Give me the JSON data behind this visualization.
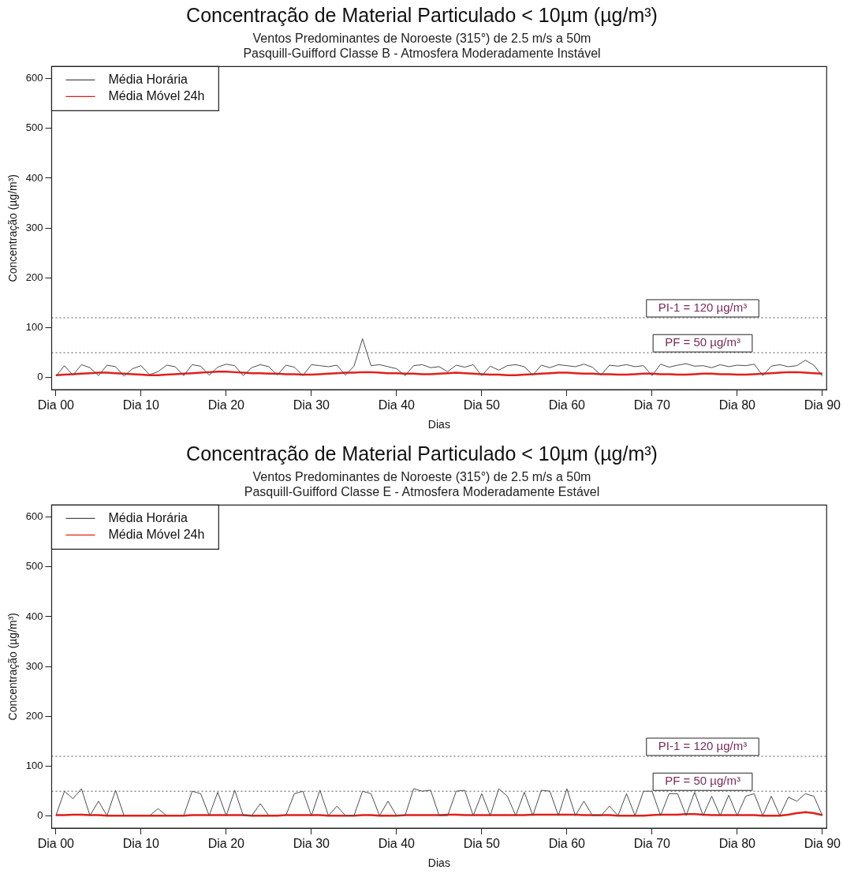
{
  "chart_data": [
    {
      "type": "line",
      "title": "Concentração de Material Particulado < 10µm (µg/m³)",
      "subtitle": "Ventos Predominantes de Noroeste (315°) de 2.5 m/s a 50m\nPasquill-Guifford Classe B - Atmosfera Moderadamente Instável",
      "xlabel": "Dias",
      "ylabel": "Concentração (µg/m³)",
      "categories": [
        "Dia 00",
        null,
        null,
        null,
        null,
        null,
        null,
        null,
        null,
        null,
        "Dia 10",
        null,
        null,
        null,
        null,
        null,
        null,
        null,
        null,
        null,
        "Dia 20",
        null,
        null,
        null,
        null,
        null,
        null,
        null,
        null,
        null,
        "Dia 30",
        null,
        null,
        null,
        null,
        null,
        null,
        null,
        null,
        null,
        "Dia 40",
        null,
        null,
        null,
        null,
        null,
        null,
        null,
        null,
        null,
        "Dia 50",
        null,
        null,
        null,
        null,
        null,
        null,
        null,
        null,
        null,
        "Dia 60",
        null,
        null,
        null,
        null,
        null,
        null,
        null,
        null,
        null,
        "Dia 70",
        null,
        null,
        null,
        null,
        null,
        null,
        null,
        null,
        null,
        "Dia 80",
        null,
        null,
        null,
        null,
        null,
        null,
        null,
        null,
        null,
        "Dia 90"
      ],
      "series": [
        {
          "name": "Média Horária",
          "color": "#4d4d4d",
          "values": [
            3,
            24,
            5,
            26,
            20,
            4,
            25,
            22,
            3,
            18,
            24,
            6,
            12,
            25,
            22,
            4,
            26,
            23,
            5,
            21,
            27,
            24,
            4,
            20,
            26,
            22,
            5,
            25,
            21,
            4,
            26,
            24,
            22,
            25,
            5,
            23,
            78,
            24,
            26,
            22,
            18,
            4,
            24,
            26,
            20,
            22,
            12,
            25,
            21,
            26,
            4,
            23,
            15,
            24,
            26,
            22,
            5,
            25,
            20,
            26,
            24,
            22,
            27,
            21,
            5,
            25,
            23,
            26,
            22,
            24,
            4,
            27,
            21,
            25,
            28,
            23,
            24,
            20,
            26,
            22,
            25,
            24,
            27,
            4,
            23,
            26,
            22,
            24,
            35,
            25,
            3
          ]
        },
        {
          "name": "Média Móvel 24h",
          "color": "#e0201b",
          "values": [
            5,
            6,
            7,
            8,
            9,
            10,
            10,
            9,
            8,
            7,
            6,
            5,
            5,
            6,
            7,
            8,
            9,
            10,
            11,
            12,
            12,
            11,
            10,
            9,
            9,
            8,
            8,
            7,
            7,
            6,
            6,
            7,
            8,
            9,
            10,
            10,
            11,
            11,
            10,
            9,
            9,
            8,
            8,
            7,
            7,
            8,
            9,
            10,
            9,
            8,
            7,
            6,
            6,
            5,
            5,
            6,
            7,
            8,
            9,
            10,
            10,
            9,
            8,
            8,
            7,
            7,
            6,
            6,
            7,
            8,
            8,
            7,
            7,
            6,
            6,
            7,
            8,
            8,
            7,
            7,
            6,
            6,
            7,
            8,
            9,
            10,
            11,
            11,
            10,
            9,
            8
          ]
        }
      ],
      "ylim": [
        -24,
        624
      ],
      "yticks": [
        0,
        100,
        200,
        300,
        400,
        500,
        600
      ],
      "ref_lines": [
        {
          "axis": "y",
          "value": 120,
          "label": "PI-1 = 120 µg/m³",
          "color": "#555555",
          "line_style": "dotted"
        },
        {
          "axis": "y",
          "value": 50,
          "label": "PF = 50 µg/m³",
          "color": "#555555",
          "line_style": "dotted"
        }
      ],
      "legend": "top left",
      "marker": "none",
      "line_style": "solid",
      "grid": false
    },
    {
      "type": "line",
      "title": "Concentração de Material Particulado < 10µm (µg/m³)",
      "subtitle": "Ventos Predominantes de Noroeste (315°) de 2.5 m/s a 50m\nPasquill-Guifford Classe E - Atmosfera Moderadamente Estável",
      "xlabel": "Dias",
      "ylabel": "Concentração (µg/m³)",
      "categories": [
        "Dia 00",
        null,
        null,
        null,
        null,
        null,
        null,
        null,
        null,
        null,
        "Dia 10",
        null,
        null,
        null,
        null,
        null,
        null,
        null,
        null,
        null,
        "Dia 20",
        null,
        null,
        null,
        null,
        null,
        null,
        null,
        null,
        null,
        "Dia 30",
        null,
        null,
        null,
        null,
        null,
        null,
        null,
        null,
        null,
        "Dia 40",
        null,
        null,
        null,
        null,
        null,
        null,
        null,
        null,
        null,
        "Dia 50",
        null,
        null,
        null,
        null,
        null,
        null,
        null,
        null,
        null,
        "Dia 60",
        null,
        null,
        null,
        null,
        null,
        null,
        null,
        null,
        null,
        "Dia 70",
        null,
        null,
        null,
        null,
        null,
        null,
        null,
        null,
        null,
        "Dia 80",
        null,
        null,
        null,
        null,
        null,
        null,
        null,
        null,
        null,
        "Dia 90"
      ],
      "series": [
        {
          "name": "Média Horária",
          "color": "#4d4d4d",
          "values": [
            1,
            50,
            35,
            55,
            1,
            30,
            1,
            52,
            1,
            null,
            null,
            1,
            15,
            1,
            null,
            1,
            50,
            45,
            1,
            48,
            1,
            52,
            1,
            1,
            25,
            1,
            null,
            1,
            45,
            50,
            1,
            52,
            1,
            20,
            1,
            1,
            50,
            45,
            1,
            30,
            1,
            1,
            55,
            50,
            52,
            1,
            1,
            50,
            52,
            1,
            45,
            1,
            55,
            40,
            1,
            48,
            1,
            52,
            50,
            1,
            55,
            1,
            30,
            1,
            1,
            20,
            1,
            45,
            1,
            50,
            50,
            1,
            45,
            45,
            1,
            48,
            1,
            40,
            1,
            42,
            1,
            40,
            45,
            1,
            40,
            1,
            38,
            30,
            45,
            40,
            1
          ]
        },
        {
          "name": "Média Móvel 24h",
          "color": "#e0201b",
          "values": [
            2,
            2,
            3,
            3,
            2,
            2,
            1,
            1,
            1,
            1,
            1,
            1,
            1,
            1,
            1,
            1,
            2,
            2,
            2,
            2,
            2,
            2,
            2,
            1,
            1,
            1,
            1,
            2,
            2,
            2,
            2,
            2,
            1,
            1,
            1,
            1,
            2,
            2,
            1,
            1,
            1,
            2,
            2,
            2,
            2,
            2,
            3,
            3,
            2,
            2,
            2,
            2,
            2,
            2,
            2,
            2,
            3,
            3,
            3,
            3,
            3,
            3,
            2,
            2,
            2,
            2,
            1,
            1,
            1,
            1,
            2,
            3,
            3,
            3,
            4,
            4,
            3,
            2,
            2,
            2,
            2,
            2,
            2,
            1,
            1,
            1,
            3,
            6,
            8,
            6,
            2
          ]
        }
      ],
      "ylim": [
        -24,
        624
      ],
      "yticks": [
        0,
        100,
        200,
        300,
        400,
        500,
        600
      ],
      "ref_lines": [
        {
          "axis": "y",
          "value": 120,
          "label": "PI-1 = 120 µg/m³",
          "color": "#555555",
          "line_style": "dotted"
        },
        {
          "axis": "y",
          "value": 50,
          "label": "PF = 50 µg/m³",
          "color": "#555555",
          "line_style": "dotted"
        }
      ],
      "legend": "top left",
      "marker": "none",
      "line_style": "solid",
      "grid": false
    }
  ]
}
